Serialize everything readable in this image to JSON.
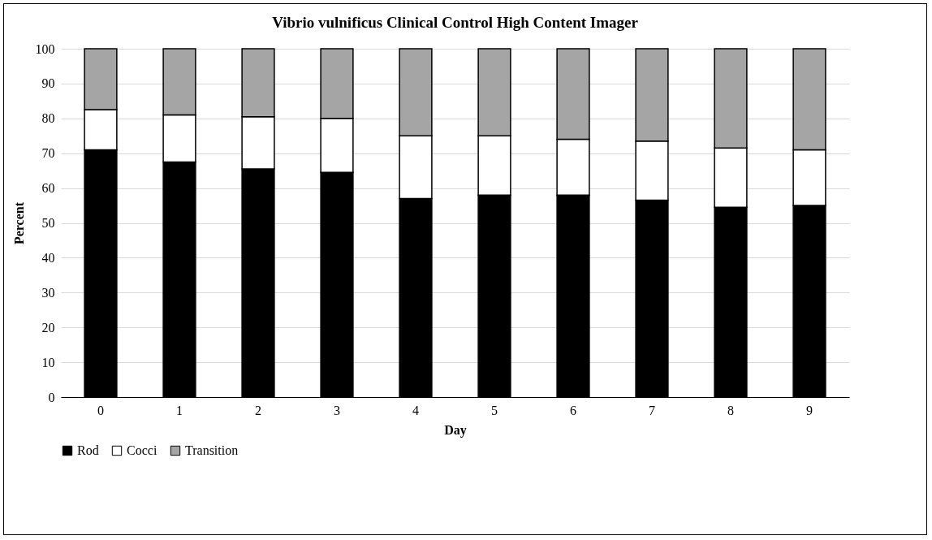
{
  "chart_data": {
    "type": "bar",
    "title": "Vibrio vulnificus Clinical Control High Content Imager",
    "xlabel": "Day",
    "ylabel": "Percent",
    "categories": [
      "0",
      "1",
      "2",
      "3",
      "4",
      "5",
      "6",
      "7",
      "8",
      "9"
    ],
    "stacked": true,
    "series": [
      {
        "name": "Rod",
        "color": "#000000",
        "values": [
          71,
          67.5,
          65.5,
          64.5,
          57,
          58,
          58,
          56.5,
          54.5,
          55
        ]
      },
      {
        "name": "Cocci",
        "color": "#ffffff",
        "values": [
          11.5,
          13.5,
          15,
          15.5,
          18,
          17,
          16,
          17,
          17,
          16
        ]
      },
      {
        "name": "Transition",
        "color": "#a5a5a5",
        "values": [
          17.5,
          19,
          19.5,
          20,
          25,
          25,
          26,
          26.5,
          28.5,
          29
        ]
      }
    ],
    "ylim": [
      0,
      100
    ],
    "yticks": [
      0,
      10,
      20,
      30,
      40,
      50,
      60,
      70,
      80,
      90,
      100
    ],
    "grid": "y",
    "legend": "bottom"
  }
}
